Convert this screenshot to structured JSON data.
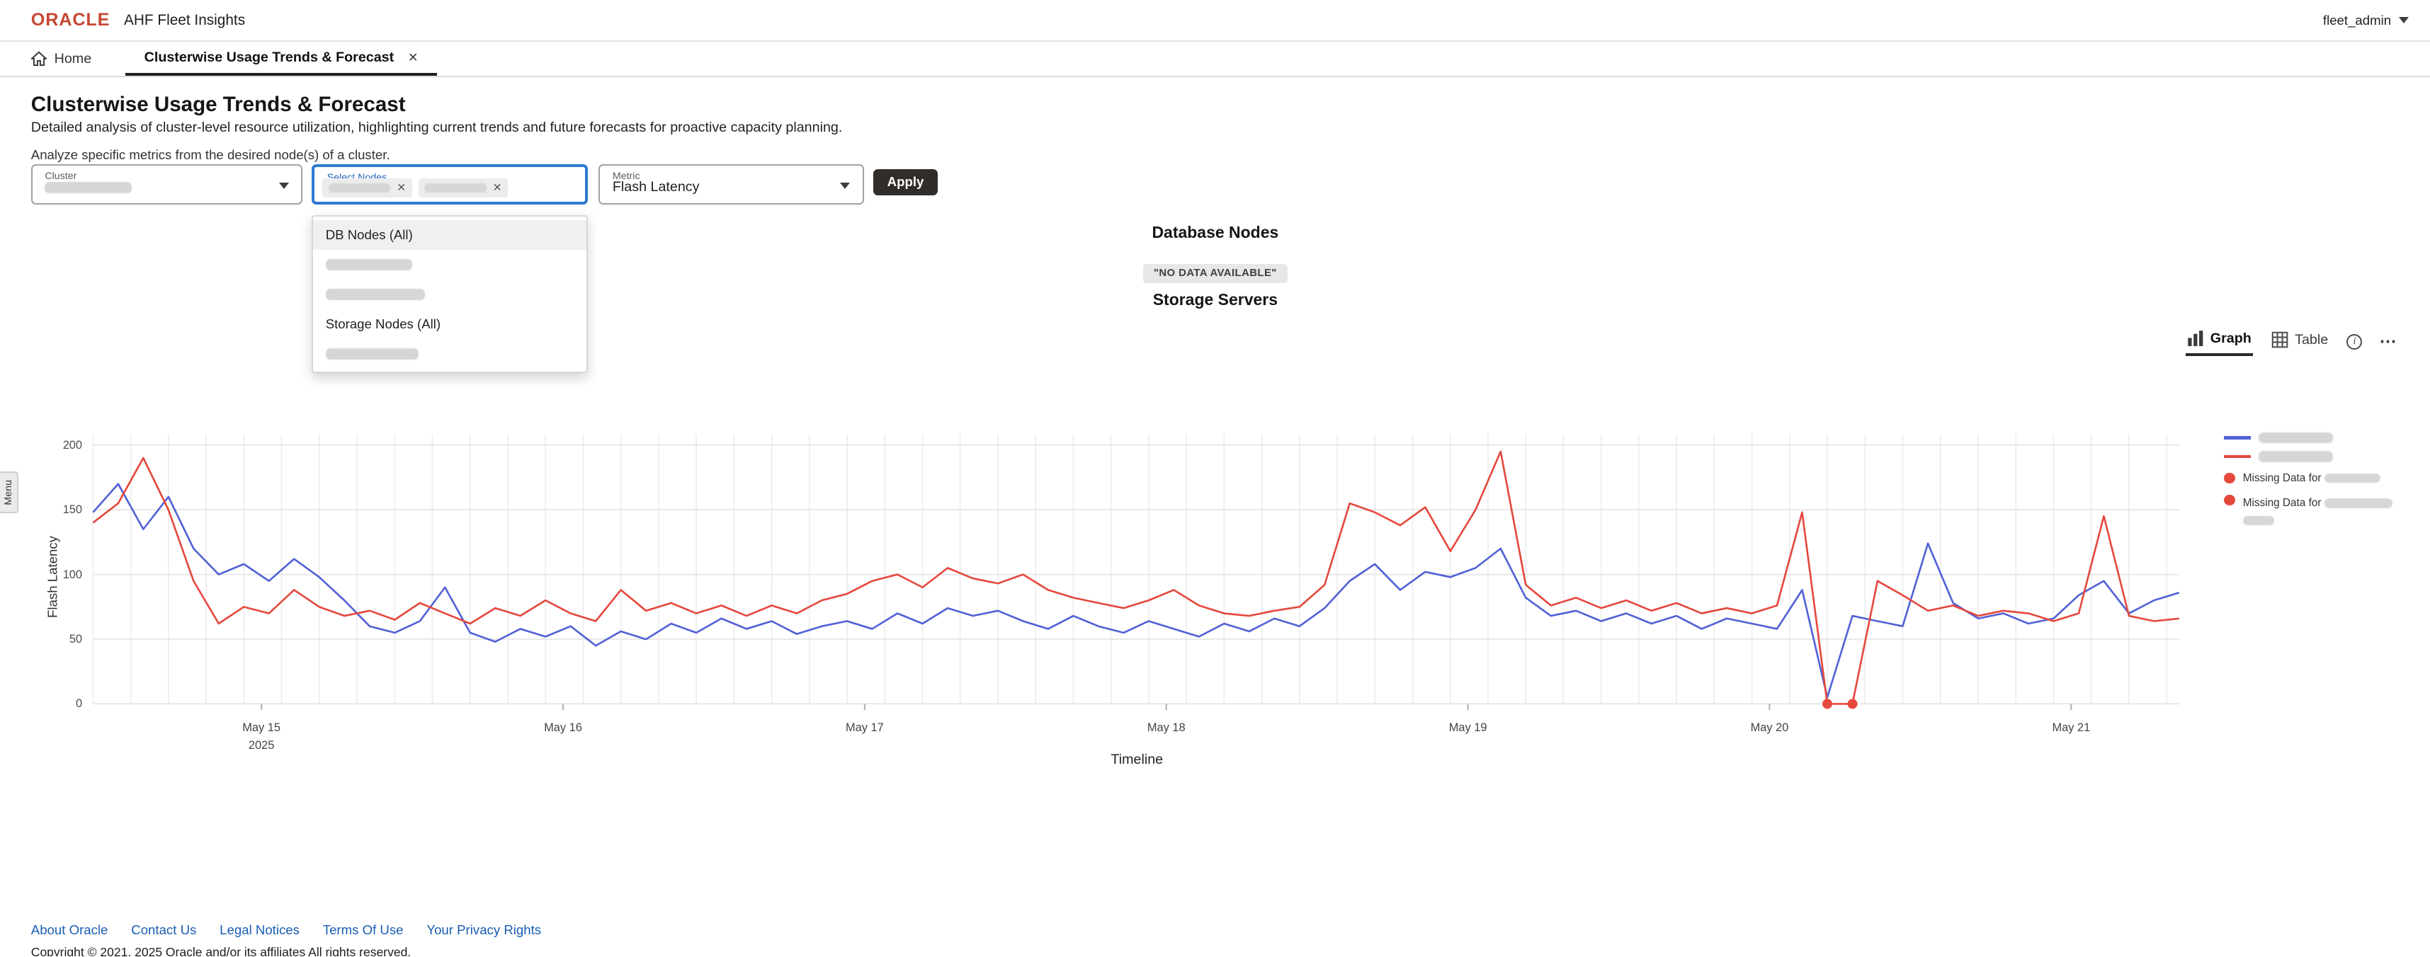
{
  "header": {
    "logo": "ORACLE",
    "app_title": "AHF Fleet Insights",
    "user_menu": "fleet_admin"
  },
  "nav": {
    "home_label": "Home",
    "tab_label": "Clusterwise Usage Trends & Forecast",
    "close_glyph": "✕"
  },
  "page": {
    "title": "Clusterwise Usage Trends & Forecast",
    "description": "Detailed analysis of cluster-level resource utilization, highlighting current trends and future forecasts for proactive capacity planning.",
    "hint": "Analyze specific metrics from the desired node(s) of a cluster."
  },
  "form": {
    "cluster_label": "Cluster",
    "nodes_label": "Select Nodes",
    "metric_label": "Metric",
    "metric_value": "Flash Latency",
    "apply_label": "Apply",
    "chip_remove_glyph": "✕"
  },
  "nodes_dropdown": {
    "option_db_all": "DB Nodes (All)",
    "option_storage_all": "Storage Nodes (All)"
  },
  "sections": {
    "database_nodes": "Database Nodes",
    "no_data_badge": "\"NO DATA AVAILABLE\"",
    "storage_servers": "Storage Servers"
  },
  "view_toggle": {
    "graph_label": "Graph",
    "table_label": "Table",
    "info_glyph": "i",
    "more_glyph": "⋯"
  },
  "side_tab": {
    "label": "Menu"
  },
  "legend": {
    "missing_prefix": "Missing Data for"
  },
  "footer": {
    "links": [
      "About Oracle",
      "Contact Us",
      "Legal Notices",
      "Terms Of Use",
      "Your Privacy Rights"
    ],
    "copyright": "Copyright © 2021, 2025 Oracle and/or its affiliates All rights reserved."
  },
  "chart_data": {
    "type": "line",
    "title": "",
    "xlabel": "Timeline",
    "ylabel": "Flash Latency",
    "ylim": [
      0,
      200
    ],
    "y_ticks": [
      0,
      50,
      100,
      150,
      200
    ],
    "x_sampling": "2-hour intervals",
    "x_ticks": [
      {
        "pos": 6.7,
        "label": "May 15",
        "sublabel": "2025"
      },
      {
        "pos": 18.7,
        "label": "May 16"
      },
      {
        "pos": 30.7,
        "label": "May 17"
      },
      {
        "pos": 42.7,
        "label": "May 18"
      },
      {
        "pos": 54.7,
        "label": "May 19"
      },
      {
        "pos": 66.7,
        "label": "May 20"
      },
      {
        "pos": 78.7,
        "label": "May 21"
      }
    ],
    "grid": {
      "vertical_every": 1.5,
      "color": "#ededed",
      "horizontal_color": "#e4e4e4"
    },
    "legend_position": "right",
    "series": [
      {
        "name": "node-series-blue (label redacted)",
        "color": "#5261d6",
        "values": [
          148,
          170,
          135,
          160,
          120,
          100,
          108,
          95,
          112,
          98,
          80,
          60,
          55,
          64,
          90,
          55,
          48,
          58,
          52,
          60,
          45,
          56,
          50,
          62,
          55,
          66,
          58,
          64,
          54,
          60,
          64,
          58,
          70,
          62,
          74,
          68,
          72,
          64,
          58,
          68,
          60,
          55,
          64,
          58,
          52,
          62,
          56,
          66,
          60,
          74,
          95,
          108,
          88,
          102,
          98,
          105,
          120,
          82,
          68,
          72,
          64,
          70,
          62,
          68,
          58,
          66,
          62,
          58,
          88,
          5,
          68,
          64,
          60,
          124,
          78,
          66,
          70,
          62,
          66,
          84,
          95,
          70,
          80,
          86
        ]
      },
      {
        "name": "node-series-red (label redacted)",
        "color": "#e5483d",
        "values": [
          140,
          155,
          190,
          150,
          95,
          62,
          75,
          70,
          88,
          75,
          68,
          72,
          65,
          78,
          70,
          62,
          74,
          68,
          80,
          70,
          64,
          88,
          72,
          78,
          70,
          76,
          68,
          76,
          70,
          80,
          85,
          95,
          100,
          90,
          105,
          97,
          93,
          100,
          88,
          82,
          78,
          74,
          80,
          88,
          76,
          70,
          68,
          72,
          75,
          92,
          155,
          148,
          138,
          152,
          118,
          150,
          195,
          92,
          76,
          82,
          74,
          80,
          72,
          78,
          70,
          74,
          70,
          76,
          148,
          0,
          0,
          95,
          84,
          72,
          76,
          68,
          72,
          70,
          64,
          70,
          145,
          68,
          64,
          66
        ]
      }
    ],
    "missing_data_points": [
      {
        "series": 1,
        "pos": 69,
        "value": 0
      },
      {
        "series": 1,
        "pos": 70,
        "value": 0
      }
    ]
  }
}
